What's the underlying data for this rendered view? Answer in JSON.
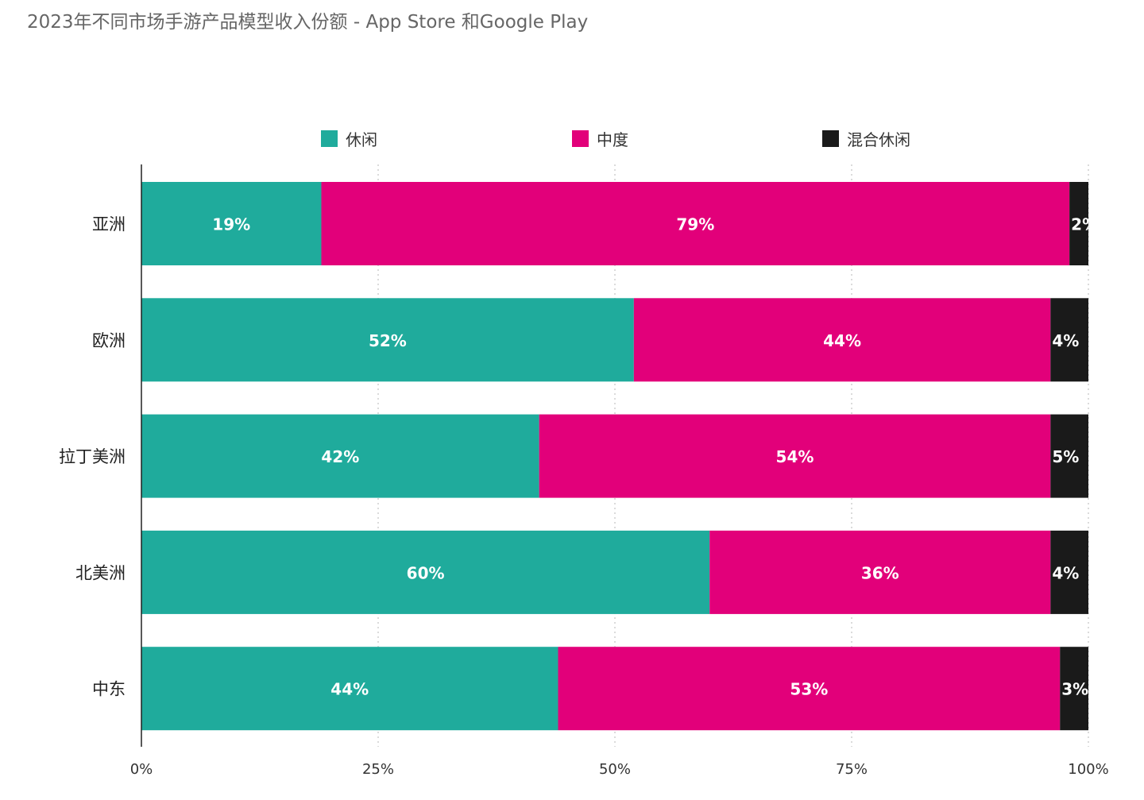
{
  "title": "2023年不同市场手游产品模型收入份额 - App Store 和Google Play",
  "chart_data": {
    "type": "bar",
    "orientation": "horizontal",
    "stacked": true,
    "title": "2023年不同市场手游产品模型收入份额 - App Store 和Google Play",
    "categories": [
      "亚洲",
      "欧洲",
      "拉丁美洲",
      "北美洲",
      "中东"
    ],
    "series": [
      {
        "name": "休闲",
        "color": "#1fab9c",
        "values": [
          19,
          52,
          42,
          60,
          44
        ],
        "labels": [
          "19%",
          "52%",
          "42%",
          "60%",
          "44%"
        ]
      },
      {
        "name": "中度",
        "color": "#e2007a",
        "values": [
          79,
          44,
          54,
          36,
          53
        ],
        "labels": [
          "79%",
          "44%",
          "54%",
          "36%",
          "53%"
        ]
      },
      {
        "name": "混合休闲",
        "color": "#1a1a1a",
        "values": [
          2,
          4,
          5,
          4,
          3
        ],
        "labels": [
          "2%",
          "4%",
          "5%",
          "4%",
          "3%"
        ]
      }
    ],
    "xlim": [
      0,
      100
    ],
    "xticks": [
      "0%",
      "25%",
      "50%",
      "75%",
      "100%"
    ],
    "grid": true,
    "legend": "top"
  }
}
